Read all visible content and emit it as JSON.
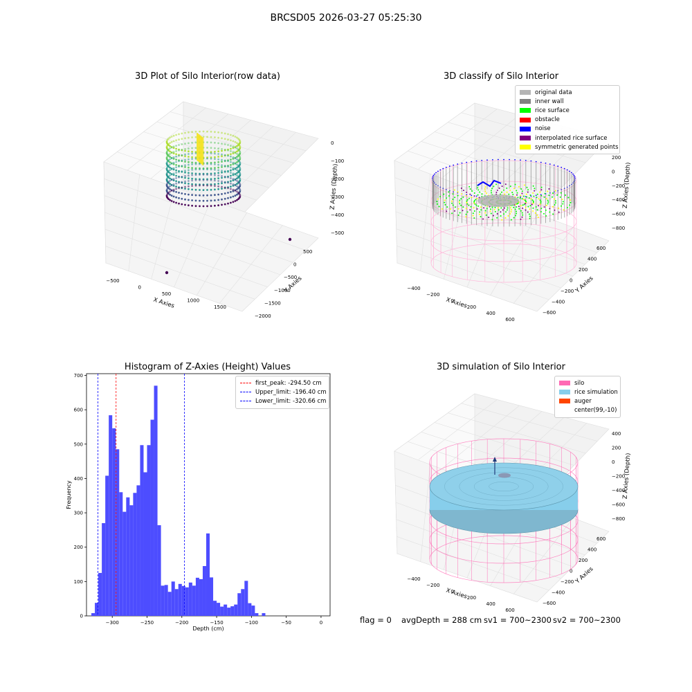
{
  "suptitle": "BRCSD05 2026-03-27 05:25:30",
  "chart_data": [
    {
      "type": "scatter",
      "title": "3D Plot of Silo Interior(row data)",
      "xlabel": "X Axies",
      "ylabel": "Y Axies",
      "zlabel": "Z Axies (Depth)",
      "x_ticks": [
        "−500",
        "0",
        "500",
        "1000",
        "1500"
      ],
      "y_ticks": [
        "−2000",
        "−1500",
        "−1000",
        "−500",
        "0",
        "500"
      ],
      "z_ticks": [
        "−500",
        "−400",
        "−300",
        "−200",
        "−100",
        "0"
      ],
      "colormap": "viridis"
    },
    {
      "type": "scatter",
      "title": "3D classify of Silo Interior",
      "xlabel": "X Axies",
      "ylabel": "Y Axies",
      "zlabel": "Z Axies (Depth)",
      "x_ticks": [
        "−400",
        "−200",
        "0",
        "200",
        "400",
        "600"
      ],
      "y_ticks": [
        "−600",
        "−400",
        "−200",
        "0",
        "200",
        "400",
        "600"
      ],
      "z_ticks": [
        "−800",
        "−600",
        "−400",
        "−200",
        "0",
        "200"
      ],
      "legend": [
        {
          "label": "original data",
          "color": "#b4b4b4"
        },
        {
          "label": "inner wall",
          "color": "#808080"
        },
        {
          "label": "rice surface",
          "color": "#00ff00"
        },
        {
          "label": "obstacle",
          "color": "#ff0000"
        },
        {
          "label": "noise",
          "color": "#0000ff"
        },
        {
          "label": "interpolated rice surface",
          "color": "#800080"
        },
        {
          "label": "symmetric generated points",
          "color": "#ffff00"
        }
      ],
      "legend_position": "top-right"
    },
    {
      "type": "bar",
      "title": "Histogram of Z-Axies (Height) Values",
      "xlabel": "Depth (cm)",
      "ylabel": "Frequency",
      "xlim": [
        -337,
        13
      ],
      "ylim": [
        0,
        705
      ],
      "x_ticks": [
        -300,
        -250,
        -200,
        -150,
        -100,
        -50,
        0
      ],
      "x_tick_labels": [
        "−300",
        "−250",
        "−200",
        "−150",
        "−100",
        "−50",
        "0"
      ],
      "y_ticks": [
        0,
        100,
        200,
        300,
        400,
        500,
        600,
        700
      ],
      "bin_start": -330,
      "bin_width": 5,
      "values": [
        8,
        38,
        125,
        270,
        408,
        584,
        546,
        485,
        360,
        303,
        345,
        322,
        358,
        380,
        497,
        418,
        497,
        571,
        670,
        264,
        88,
        90,
        70,
        100,
        78,
        93,
        87,
        83,
        97,
        88,
        111,
        107,
        145,
        240,
        112,
        44,
        38,
        27,
        33,
        24,
        28,
        33,
        66,
        78,
        102,
        37,
        30,
        8,
        0,
        8
      ],
      "bar_color": "#4d4dff",
      "lines": [
        {
          "label": "first_peak: -294.50 cm",
          "x": -294.5,
          "color": "#ff0000"
        },
        {
          "label": "Upper_limit: -196.40 cm",
          "x": -196.4,
          "color": "#0000ff"
        },
        {
          "label": "Lower_limit: -320.66 cm",
          "x": -320.66,
          "color": "#0000ff"
        }
      ],
      "legend_position": "top-right"
    },
    {
      "type": "scatter",
      "title": "3D simulation of Silo Interior",
      "xlabel": "X Axies",
      "ylabel": "Y Axies",
      "zlabel": "Z Axies (Depth)",
      "x_ticks": [
        "−400",
        "−200",
        "0",
        "200",
        "400",
        "600"
      ],
      "y_ticks": [
        "−600",
        "−400",
        "−200",
        "0",
        "200",
        "400",
        "600"
      ],
      "z_ticks": [
        "−800",
        "−600",
        "−400",
        "−200",
        "0",
        "200",
        "400"
      ],
      "legend": [
        {
          "label": "silo",
          "color": "#ff69b4"
        },
        {
          "label": "rice simulation",
          "color": "#87ceeb"
        },
        {
          "label": "auger",
          "color": "#ff4500"
        },
        {
          "label": "center(99,-10)",
          "color": "#ffffff"
        }
      ],
      "legend_position": "top-right"
    }
  ],
  "status": {
    "flag": "flag = 0",
    "avg_depth": "avgDepth = 288 cm",
    "sv1": "sv1 = 700~2300",
    "sv2": "sv2 = 700~2300"
  }
}
